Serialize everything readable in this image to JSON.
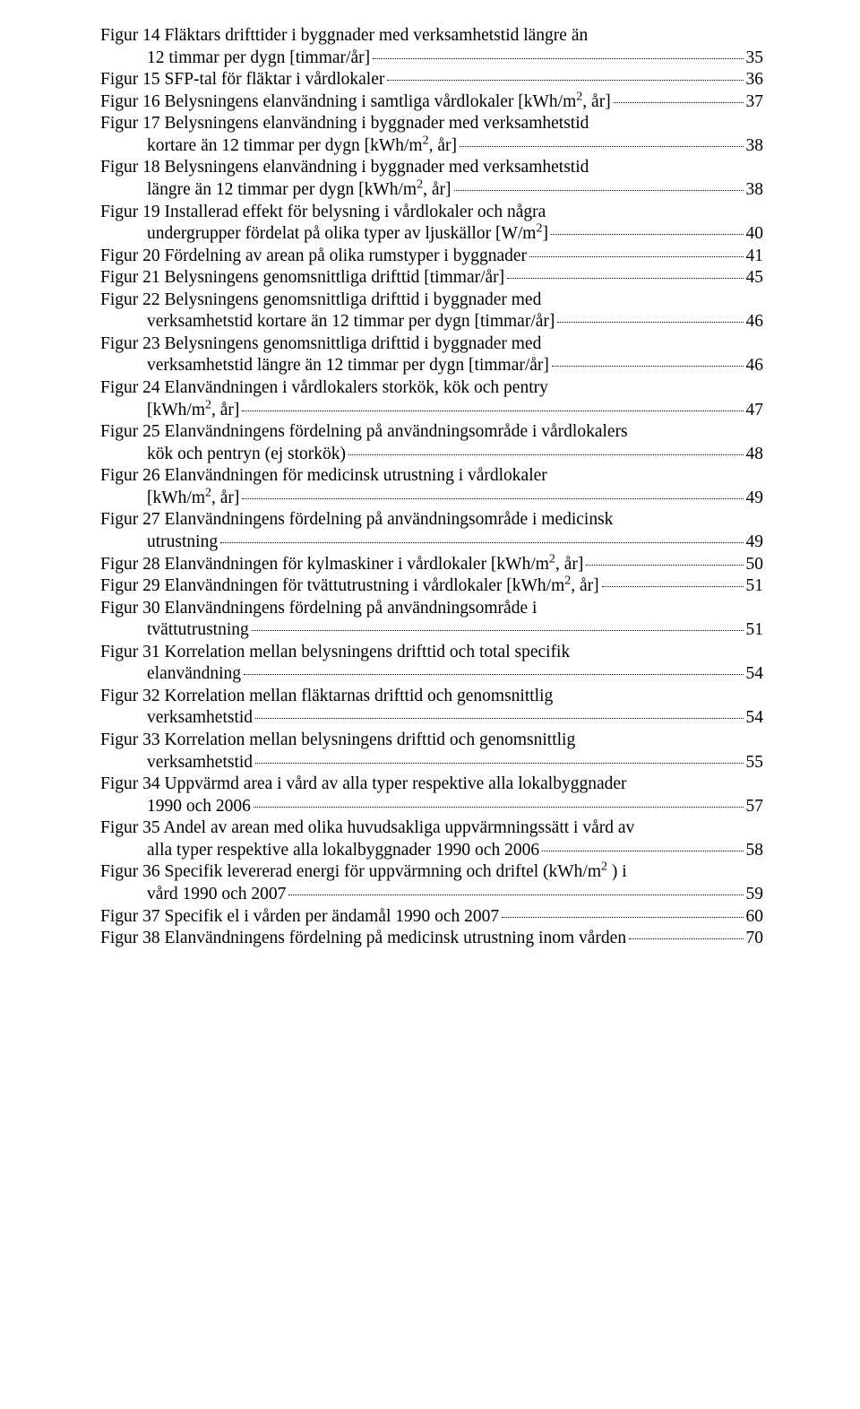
{
  "entries": [
    {
      "lines": [
        "Figur 14 Fläktars drifttider i byggnader med verksamhetstid längre än"
      ],
      "last": {
        "text": "12 timmar per dygn [timmar/år]",
        "indent": true
      },
      "page": "35"
    },
    {
      "lines": [],
      "last": {
        "text": "Figur 15 SFP-tal för fläktar i vårdlokaler",
        "indent": false
      },
      "page": "36"
    },
    {
      "lines": [],
      "last": {
        "text": "Figur 16  Belysningens elanvändning i samtliga vårdlokaler [kWh/m<sup>2</sup>, år]",
        "indent": false
      },
      "page": "37"
    },
    {
      "lines": [
        "Figur 17 Belysningens elanvändning i byggnader med verksamhetstid"
      ],
      "last": {
        "text": "kortare än 12 timmar per dygn [kWh/m<sup>2</sup>, år]",
        "indent": true
      },
      "page": "38"
    },
    {
      "lines": [
        "Figur 18 Belysningens elanvändning i byggnader med verksamhetstid"
      ],
      "last": {
        "text": "längre än 12 timmar per dygn [kWh/m<sup>2</sup>, år]",
        "indent": true
      },
      "page": "38"
    },
    {
      "lines": [
        "Figur 19 Installerad effekt för belysning i vårdlokaler och några"
      ],
      "last": {
        "text": "undergrupper fördelat på olika typer av ljuskällor [W/m<sup>2</sup>]",
        "indent": true
      },
      "page": "40"
    },
    {
      "lines": [],
      "last": {
        "text": "Figur 20  Fördelning av arean på olika rumstyper i byggnader",
        "indent": false
      },
      "page": "41"
    },
    {
      "lines": [],
      "last": {
        "text": "Figur 21 Belysningens genomsnittliga drifttid [timmar/år]",
        "indent": false
      },
      "page": "45"
    },
    {
      "lines": [
        "Figur 22 Belysningens genomsnittliga drifttid i byggnader med"
      ],
      "last": {
        "text": "verksamhetstid kortare än 12 timmar per dygn [timmar/år]",
        "indent": true
      },
      "page": "46"
    },
    {
      "lines": [
        "Figur 23 Belysningens genomsnittliga drifttid i byggnader med"
      ],
      "last": {
        "text": "verksamhetstid längre än 12 timmar per dygn [timmar/år]",
        "indent": true
      },
      "page": "46"
    },
    {
      "lines": [
        "Figur 24 Elanvändningen i vårdlokalers storkök, kök och pentry"
      ],
      "last": {
        "text": "[kWh/m<sup>2</sup>, år]",
        "indent": true
      },
      "page": "47"
    },
    {
      "lines": [
        "Figur 25 Elanvändningens fördelning på användningsområde i vårdlokalers"
      ],
      "last": {
        "text": "kök och pentryn (ej storkök)",
        "indent": true
      },
      "page": "48"
    },
    {
      "lines": [
        "Figur 26 Elanvändningen för medicinsk utrustning i vårdlokaler"
      ],
      "last": {
        "text": "[kWh/m<sup>2</sup>, år]",
        "indent": true
      },
      "page": "49"
    },
    {
      "lines": [
        "Figur 27 Elanvändningens fördelning på användningsområde i medicinsk"
      ],
      "last": {
        "text": "utrustning",
        "indent": true
      },
      "page": "49"
    },
    {
      "lines": [],
      "last": {
        "text": "Figur 28 Elanvändningen för kylmaskiner i vårdlokaler [kWh/m<sup>2</sup>, år]",
        "indent": false
      },
      "page": "50"
    },
    {
      "lines": [],
      "last": {
        "text": "Figur 29 Elanvändningen för tvättutrustning i vårdlokaler [kWh/m<sup>2</sup>, år]",
        "indent": false
      },
      "page": "51"
    },
    {
      "lines": [
        "Figur 30 Elanvändningens fördelning på användningsområde i"
      ],
      "last": {
        "text": "tvättutrustning",
        "indent": true
      },
      "page": "51"
    },
    {
      "lines": [
        "Figur 31 Korrelation mellan belysningens drifttid och total specifik"
      ],
      "last": {
        "text": "elanvändning",
        "indent": true
      },
      "page": "54"
    },
    {
      "lines": [
        "Figur 32 Korrelation mellan fläktarnas drifttid och genomsnittlig"
      ],
      "last": {
        "text": "verksamhetstid",
        "indent": true
      },
      "page": "54"
    },
    {
      "lines": [
        "Figur 33 Korrelation mellan belysningens drifttid och genomsnittlig"
      ],
      "last": {
        "text": "verksamhetstid",
        "indent": true
      },
      "page": "55"
    },
    {
      "lines": [
        "Figur 34 Uppvärmd area i vård av alla typer respektive alla lokalbyggnader"
      ],
      "last": {
        "text": "1990 och 2006",
        "indent": true
      },
      "page": "57"
    },
    {
      "lines": [
        "Figur 35 Andel av arean med olika huvudsakliga uppvärmningssätt i vård av"
      ],
      "last": {
        "text": "alla typer respektive alla lokalbyggnader 1990 och 2006",
        "indent": true
      },
      "page": "58"
    },
    {
      "lines": [
        "Figur 36 Specifik levererad energi för uppvärmning och driftel (kWh/m<sup>2</sup> ) i"
      ],
      "last": {
        "text": "vård 1990 och 2007",
        "indent": true
      },
      "page": "59"
    },
    {
      "lines": [],
      "last": {
        "text": "Figur 37 Specifik el i vården per ändamål 1990 och 2007",
        "indent": false
      },
      "page": "60"
    },
    {
      "lines": [],
      "last": {
        "text": "Figur 38 Elanvändningens fördelning på medicinsk utrustning inom vården",
        "indent": false
      },
      "page": "70"
    }
  ]
}
